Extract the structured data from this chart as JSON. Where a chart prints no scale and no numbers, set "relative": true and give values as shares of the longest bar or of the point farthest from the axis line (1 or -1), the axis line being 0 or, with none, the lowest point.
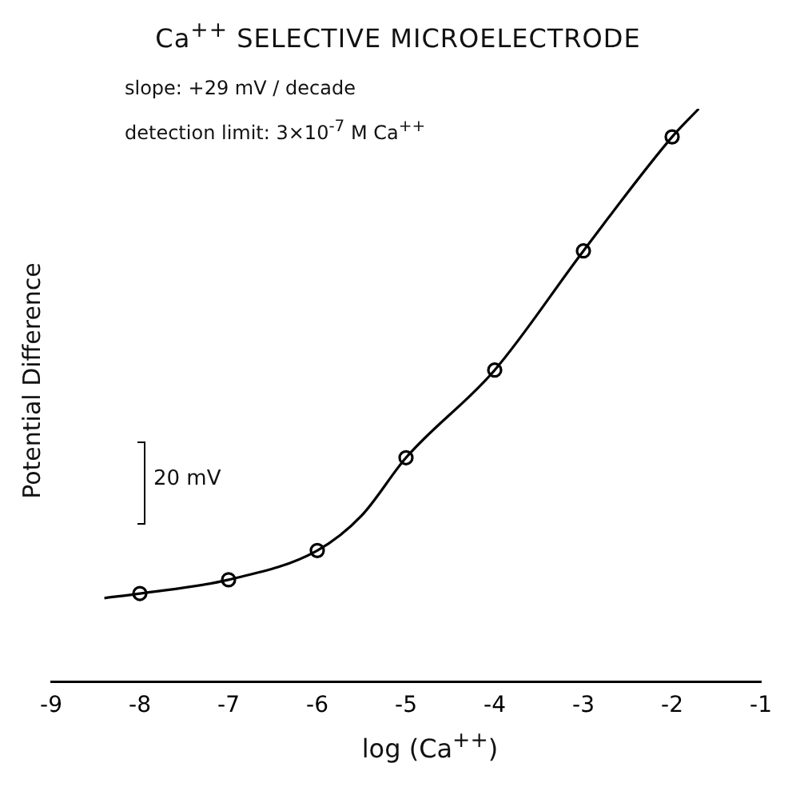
{
  "chart_data": {
    "type": "scatter",
    "title": "Ca$^{++}$ SELECTIVE MICROELECTRODE",
    "xlabel": "log (Ca$^{++}$)",
    "ylabel": "Potential Difference",
    "annotations": [
      "slope: +29 mV / decade",
      "detection limit: 3×10$^{-7}$ M Ca$^{++}$",
      "20 mV"
    ],
    "relative": true,
    "xlim": [
      -9,
      -1
    ],
    "xticks": [
      -9,
      -8,
      -7,
      -6,
      -5,
      -4,
      -3,
      -2,
      -1
    ],
    "grid": false,
    "legend": false,
    "series": [
      {
        "type": "line",
        "x": [
          -8.4,
          -8,
          -7,
          -6,
          -5.5,
          -5,
          -4,
          -3,
          -2,
          -1.7
        ],
        "values": [
          0.146,
          0.154,
          0.178,
          0.229,
          0.29,
          0.391,
          0.544,
          0.752,
          0.951,
          1
        ],
        "color": "#000000",
        "marker": "none",
        "line_style": "solid"
      },
      {
        "type": "scatter",
        "x": [
          -8,
          -7,
          -6,
          -5,
          -4,
          -3,
          -2
        ],
        "values": [
          0.154,
          0.178,
          0.229,
          0.391,
          0.544,
          0.752,
          0.951
        ],
        "color": "#000000",
        "marker": "circle"
      }
    ]
  }
}
